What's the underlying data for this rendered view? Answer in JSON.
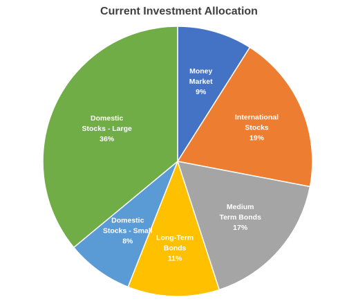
{
  "chart_data": {
    "type": "pie",
    "title": "Current Investment Allocation",
    "slices": [
      {
        "name": "Money Market",
        "label_lines": [
          "Money",
          "Market"
        ],
        "value": 9,
        "value_label": "9%",
        "color": "#4472C4"
      },
      {
        "name": "International Stocks",
        "label_lines": [
          "International",
          "Stocks"
        ],
        "value": 19,
        "value_label": "19%",
        "color": "#ED7D31"
      },
      {
        "name": "Medium Term Bonds",
        "label_lines": [
          "Medium",
          "Term Bonds"
        ],
        "value": 17,
        "value_label": "17%",
        "color": "#A5A5A5"
      },
      {
        "name": "Long-Term Bonds",
        "label_lines": [
          "Long-Term",
          "Bonds"
        ],
        "value": 11,
        "value_label": "11%",
        "color": "#FFC000"
      },
      {
        "name": "Domestic Stocks - Small",
        "label_lines": [
          "Domestic",
          "Stocks - Small"
        ],
        "value": 8,
        "value_label": "8%",
        "color": "#5B9BD5"
      },
      {
        "name": "Domestic Stocks - Large",
        "label_lines": [
          "Domestic",
          "Stocks - Large"
        ],
        "value": 36,
        "value_label": "36%",
        "color": "#70AD47"
      }
    ],
    "start_angle": "top",
    "direction": "clockwise",
    "legend": "none",
    "data_labels": "inside"
  }
}
